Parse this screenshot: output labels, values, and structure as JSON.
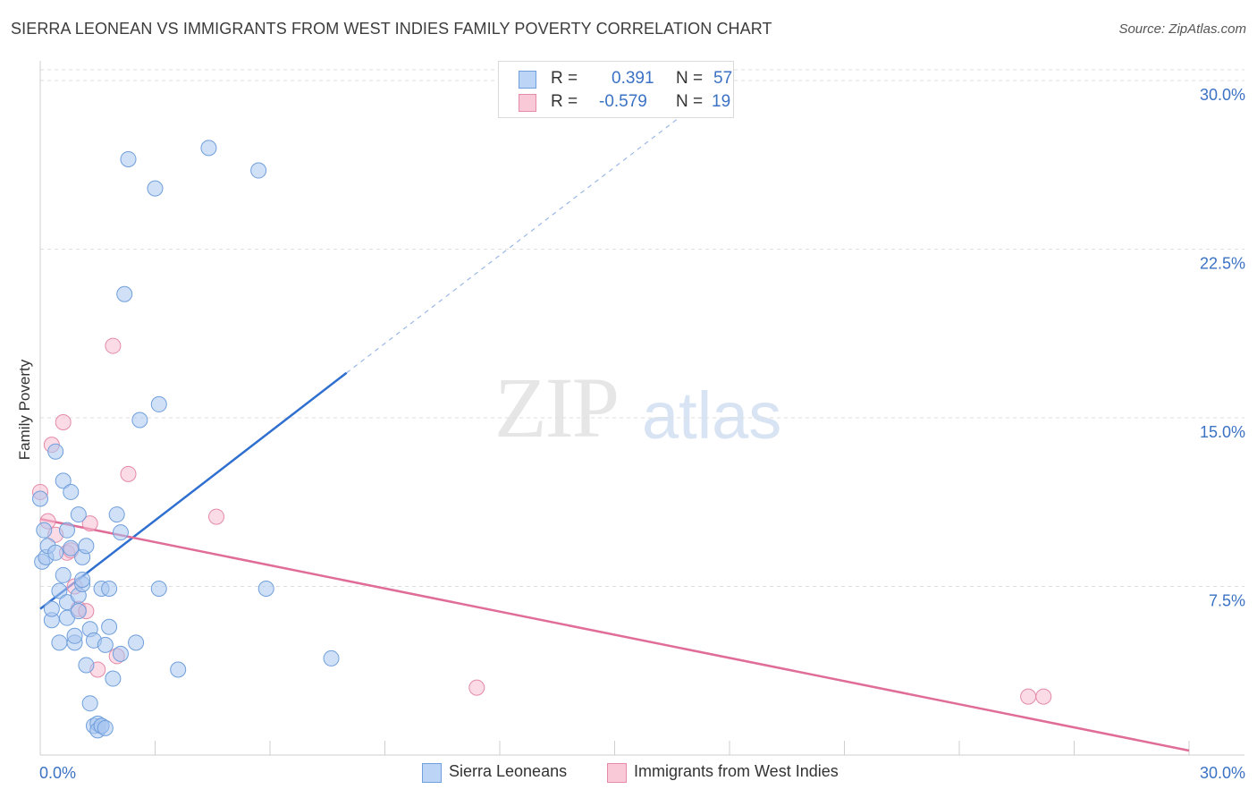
{
  "title": "SIERRA LEONEAN VS IMMIGRANTS FROM WEST INDIES FAMILY POVERTY CORRELATION CHART",
  "source": "Source: ZipAtlas.com",
  "watermark": {
    "zip": "ZIP",
    "atlas": "atlas"
  },
  "legend": {
    "rows": [
      {
        "r_label": "R =",
        "r_value": "0.391",
        "n_label": "N =",
        "n_value": "57",
        "color": "#a9c7f0",
        "border": "#6f9fdc"
      },
      {
        "r_label": "R =",
        "r_value": "-0.579",
        "n_label": "N =",
        "n_value": "19",
        "color": "#f7bfd1",
        "border": "#e58aa8"
      }
    ]
  },
  "bottom_legend": [
    {
      "label": "Sierra Leoneans",
      "color": "#bcd4f5",
      "border": "#6f9fdc"
    },
    {
      "label": "Immigrants from West Indies",
      "color": "#f9c9d8",
      "border": "#e58aa8"
    }
  ],
  "chart_data": {
    "type": "scatter",
    "title": "SIERRA LEONEAN VS IMMIGRANTS FROM WEST INDIES FAMILY POVERTY CORRELATION CHART",
    "xlabel": "",
    "ylabel": "Family Poverty",
    "xlim": [
      0,
      30
    ],
    "ylim": [
      0,
      30
    ],
    "x_tick_labels": [
      "0.0%",
      "30.0%"
    ],
    "y_ticks": [
      7.5,
      15.0,
      22.5,
      30.0
    ],
    "y_tick_labels": [
      "7.5%",
      "15.0%",
      "22.5%",
      "30.0%"
    ],
    "grid": true,
    "legend_position": "top-center",
    "colors": {
      "blue_fill": "#a9c7f0",
      "blue_stroke": "#6f9fdc",
      "blue_line": "#2f6fd0",
      "pink_fill": "#f7bfd1",
      "pink_stroke": "#e58aa8",
      "pink_line": "#e06c98",
      "axis_label": "#3b72c4"
    },
    "series": [
      {
        "name": "Sierra Leoneans",
        "x": [
          0.0,
          0.05,
          0.1,
          0.15,
          0.2,
          0.3,
          0.3,
          0.4,
          0.4,
          0.5,
          0.5,
          0.6,
          0.6,
          0.7,
          0.7,
          0.7,
          0.8,
          0.8,
          0.9,
          0.9,
          1.0,
          1.0,
          1.0,
          1.1,
          1.1,
          1.1,
          1.2,
          1.2,
          1.3,
          1.3,
          1.4,
          1.4,
          1.5,
          1.5,
          1.6,
          1.6,
          1.6,
          1.7,
          1.7,
          1.8,
          1.8,
          1.9,
          2.0,
          2.1,
          2.1,
          2.2,
          2.3,
          2.5,
          2.6,
          3.0,
          3.1,
          3.1,
          3.6,
          4.4,
          5.7,
          5.9,
          7.6
        ],
        "y": [
          11.4,
          8.6,
          10.0,
          8.8,
          9.3,
          6.0,
          6.5,
          9.0,
          13.5,
          5.0,
          7.3,
          12.2,
          8.0,
          6.1,
          6.8,
          10.0,
          11.7,
          9.2,
          5.0,
          5.3,
          7.1,
          10.7,
          6.4,
          8.8,
          7.6,
          7.8,
          9.3,
          4.0,
          2.3,
          5.6,
          1.3,
          5.1,
          1.4,
          1.1,
          1.3,
          7.4,
          1.3,
          1.2,
          4.9,
          5.7,
          7.4,
          3.4,
          10.7,
          4.5,
          9.9,
          20.5,
          26.5,
          5.0,
          14.9,
          25.2,
          15.6,
          7.4,
          3.8,
          27.0,
          26.0,
          7.4,
          4.3
        ],
        "trend": {
          "x": [
            0.0,
            8.0
          ],
          "y": [
            6.5,
            17.0
          ],
          "dashed_extension": {
            "x": [
              8.0,
              16.8
            ],
            "y": [
              17.0,
              28.5
            ]
          }
        }
      },
      {
        "name": "Immigrants from West Indies",
        "x": [
          0.0,
          0.2,
          0.3,
          0.4,
          0.6,
          0.7,
          0.8,
          0.9,
          1.0,
          1.2,
          1.3,
          1.5,
          1.9,
          2.0,
          2.3,
          4.6,
          11.4,
          25.8,
          26.2
        ],
        "y": [
          11.7,
          10.4,
          13.8,
          9.8,
          14.8,
          9.0,
          9.1,
          7.5,
          6.5,
          6.4,
          10.3,
          3.8,
          18.2,
          4.4,
          12.5,
          10.6,
          3.0,
          2.6,
          2.6
        ],
        "trend": {
          "x": [
            0.0,
            30.0
          ],
          "y": [
            10.5,
            0.2
          ]
        }
      }
    ]
  }
}
